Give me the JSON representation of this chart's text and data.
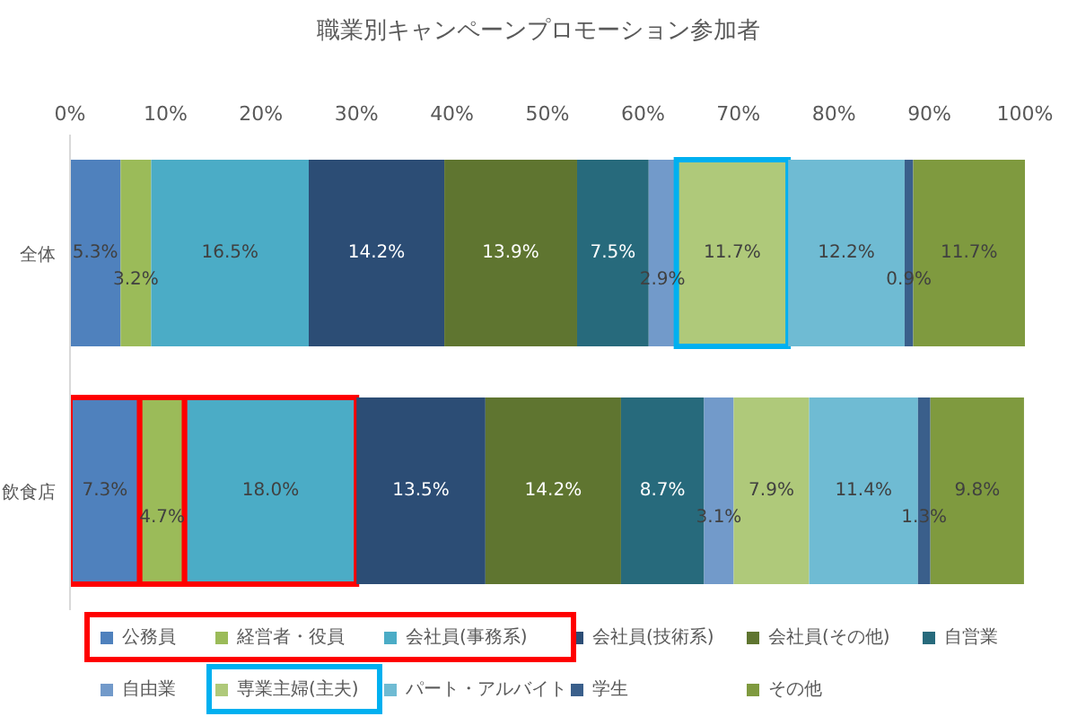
{
  "chart_data": {
    "type": "bar",
    "orientation": "horizontal",
    "stacked": true,
    "title": "職業別キャンペーンプロモーション参加者",
    "categories": [
      "全体",
      "飲食店"
    ],
    "xlim": [
      0,
      100
    ],
    "xticks": [
      {
        "value": 0,
        "label": "0%"
      },
      {
        "value": 10,
        "label": "10%"
      },
      {
        "value": 20,
        "label": "20%"
      },
      {
        "value": 30,
        "label": "30%"
      },
      {
        "value": 40,
        "label": "40%"
      },
      {
        "value": 50,
        "label": "50%"
      },
      {
        "value": 60,
        "label": "60%"
      },
      {
        "value": 70,
        "label": "70%"
      },
      {
        "value": 80,
        "label": "80%"
      },
      {
        "value": 90,
        "label": "90%"
      },
      {
        "value": 100,
        "label": "100%"
      }
    ],
    "grid": false,
    "legend": "bottom",
    "series": [
      {
        "name": "公務員",
        "color": "#4f81bd",
        "values": [
          5.3,
          7.3
        ],
        "value_labels": [
          "5.3%",
          "7.3%"
        ]
      },
      {
        "name": "経営者・役員",
        "color": "#9bbb59",
        "values": [
          3.2,
          4.7
        ],
        "value_labels": [
          "3.2%",
          "4.7%"
        ]
      },
      {
        "name": "会社員(事務系)",
        "color": "#4bacc6",
        "values": [
          16.5,
          18.0
        ],
        "value_labels": [
          "16.5%",
          "18.0%"
        ]
      },
      {
        "name": "会社員(技術系)",
        "color": "#2c4d75",
        "values": [
          14.2,
          13.5
        ],
        "value_labels": [
          "14.2%",
          "13.5%"
        ]
      },
      {
        "name": "会社員(その他)",
        "color": "#5f7530",
        "values": [
          13.9,
          14.2
        ],
        "value_labels": [
          "13.9%",
          "14.2%"
        ]
      },
      {
        "name": "自営業",
        "color": "#276a7c",
        "values": [
          7.5,
          8.7
        ],
        "value_labels": [
          "7.5%",
          "8.7%"
        ]
      },
      {
        "name": "自由業",
        "color": "#729aca",
        "values": [
          2.9,
          3.1
        ],
        "value_labels": [
          "2.9%",
          "3.1%"
        ]
      },
      {
        "name": "専業主婦(主夫)",
        "color": "#afc97a",
        "values": [
          11.7,
          7.9
        ],
        "value_labels": [
          "11.7%",
          "7.9%"
        ]
      },
      {
        "name": "パート・アルバイト",
        "color": "#6fbbd3",
        "values": [
          12.2,
          11.4
        ],
        "value_labels": [
          "12.2%",
          "11.4%"
        ]
      },
      {
        "name": "学生",
        "color": "#3a5f8b",
        "values": [
          0.9,
          1.3
        ],
        "value_labels": [
          "0.9%",
          "1.3%"
        ]
      },
      {
        "name": "その他",
        "color": "#7f9a3f",
        "values": [
          11.7,
          9.8
        ],
        "value_labels": [
          "11.7%",
          "9.8%"
        ]
      }
    ]
  }
}
